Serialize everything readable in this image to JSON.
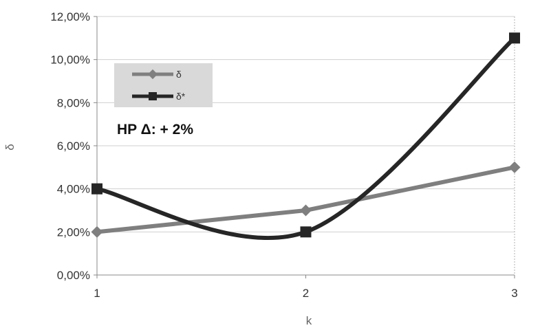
{
  "chart_data": {
    "type": "line",
    "x": [
      1,
      2,
      3
    ],
    "xlabel": "k",
    "ylabel": "δ",
    "ylim": [
      0,
      0.12
    ],
    "y_ticks": [
      "0,00%",
      "2,00%",
      "4,00%",
      "6,00%",
      "8,00%",
      "10,00%",
      "12,00%"
    ],
    "x_ticks": [
      "1",
      "2",
      "3"
    ],
    "grid": "horizontal",
    "legend_position": "top-left",
    "annotation": "HP Δ: + 2%",
    "series": [
      {
        "name": "δ",
        "values": [
          0.02,
          0.03,
          0.05
        ],
        "color": "#7f7f7f",
        "marker": "diamond",
        "smooth": false
      },
      {
        "name": "δ*",
        "values": [
          0.04,
          0.02,
          0.11
        ],
        "color": "#262626",
        "marker": "square",
        "smooth": true
      }
    ]
  }
}
